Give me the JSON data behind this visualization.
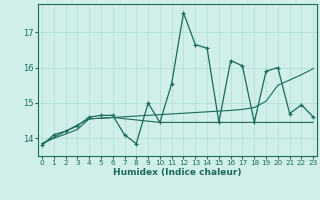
{
  "xlabel": "Humidex (Indice chaleur)",
  "background_color": "#d0eeea",
  "grid_color": "#b0ddd5",
  "line_color": "#1a6b5a",
  "xticks": [
    0,
    1,
    2,
    3,
    4,
    5,
    6,
    7,
    8,
    9,
    10,
    11,
    12,
    13,
    14,
    15,
    16,
    17,
    18,
    19,
    20,
    21,
    22,
    23
  ],
  "yticks": [
    14,
    15,
    16,
    17
  ],
  "ylim": [
    13.5,
    17.8
  ],
  "xlim": [
    -0.3,
    23.3
  ],
  "series1_x": [
    0,
    1,
    2,
    3,
    4,
    5,
    6,
    7,
    8,
    9,
    10,
    11,
    12,
    13,
    14,
    15,
    16,
    17,
    18,
    19,
    20,
    21,
    22,
    23
  ],
  "series1_y": [
    13.8,
    14.1,
    14.2,
    14.35,
    14.6,
    14.65,
    14.65,
    14.1,
    13.85,
    15.0,
    14.45,
    15.55,
    17.55,
    16.65,
    16.55,
    14.45,
    16.2,
    16.05,
    14.45,
    15.9,
    16.0,
    14.7,
    14.95,
    14.6
  ],
  "series2_x": [
    0,
    1,
    2,
    3,
    4,
    5,
    6,
    7,
    8,
    9,
    10,
    11,
    12,
    13,
    14,
    15,
    16,
    17,
    18,
    19,
    20,
    21,
    22,
    23
  ],
  "series2_y": [
    13.85,
    14.0,
    14.12,
    14.25,
    14.55,
    14.57,
    14.59,
    14.61,
    14.63,
    14.65,
    14.67,
    14.69,
    14.71,
    14.73,
    14.75,
    14.77,
    14.79,
    14.82,
    14.87,
    15.05,
    15.5,
    15.65,
    15.8,
    15.97
  ],
  "series3_x": [
    0,
    4,
    5,
    6,
    10,
    11,
    12,
    13,
    14,
    15,
    16,
    17,
    18,
    19,
    20,
    21,
    22,
    23
  ],
  "series3_y": [
    13.85,
    14.55,
    14.57,
    14.59,
    14.45,
    14.45,
    14.45,
    14.45,
    14.45,
    14.45,
    14.45,
    14.45,
    14.45,
    14.45,
    14.45,
    14.45,
    14.45,
    14.45
  ]
}
